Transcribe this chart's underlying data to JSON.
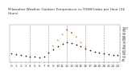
{
  "title": "Milwaukee Weather Outdoor Temperature vs THSW Index per Hour (24 Hours)",
  "hours": [
    0,
    1,
    2,
    3,
    4,
    5,
    6,
    7,
    8,
    9,
    10,
    11,
    12,
    13,
    14,
    15,
    16,
    17,
    18,
    19,
    20,
    21,
    22,
    23
  ],
  "temp": [
    55,
    54,
    53,
    51,
    50,
    49,
    48,
    50,
    56,
    62,
    68,
    72,
    74,
    73,
    70,
    67,
    64,
    61,
    58,
    56,
    55,
    54,
    53,
    52
  ],
  "thsw": [
    null,
    null,
    null,
    null,
    null,
    null,
    null,
    null,
    null,
    68,
    78,
    88,
    96,
    91,
    84,
    74,
    66,
    null,
    null,
    null,
    null,
    null,
    null,
    null
  ],
  "temp_color": "#111111",
  "thsw_color_low": "#ff8800",
  "thsw_color_high": "#ff0000",
  "thsw_threshold": 90,
  "bg_color": "#ffffff",
  "grid_color": "#999999",
  "ylim_min": 40,
  "ylim_max": 105,
  "xlim_min": -0.5,
  "xlim_max": 23.5,
  "ytick_labels": [
    "45",
    "50",
    "55",
    "60",
    "65",
    "70",
    "75",
    "80",
    "85",
    "90",
    "95",
    "100"
  ],
  "ytick_values": [
    45,
    50,
    55,
    60,
    65,
    70,
    75,
    80,
    85,
    90,
    95,
    100
  ],
  "xtick_values": [
    0,
    1,
    2,
    3,
    4,
    5,
    6,
    7,
    8,
    9,
    10,
    11,
    12,
    13,
    14,
    15,
    16,
    17,
    18,
    19,
    20,
    21,
    22,
    23
  ],
  "vgrid_hours": [
    4,
    8,
    12,
    16,
    20
  ],
  "dot_size": 1.5,
  "title_fontsize": 3.0,
  "tick_fontsize": 3.0
}
